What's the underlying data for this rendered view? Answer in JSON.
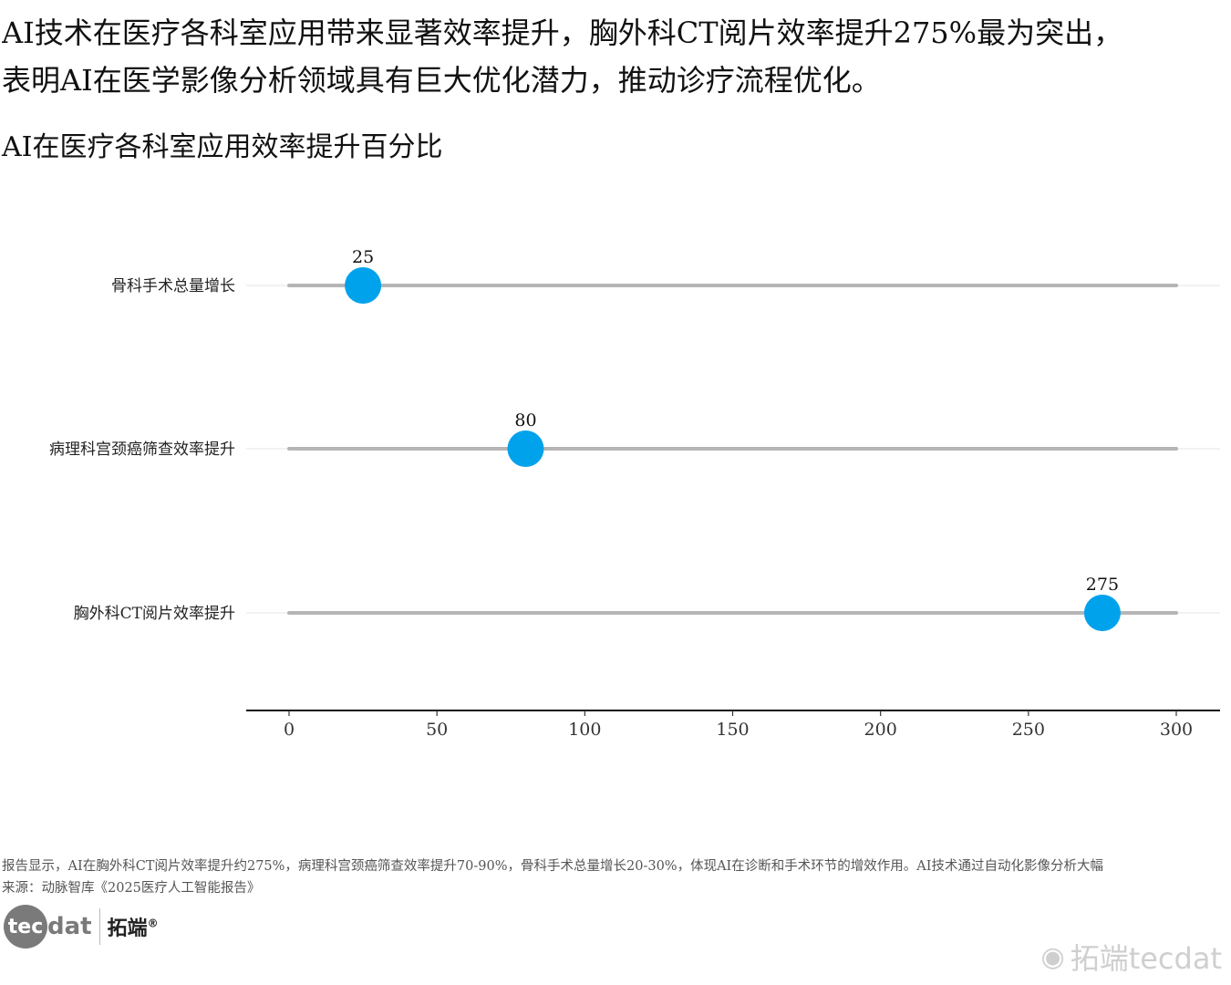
{
  "headline": {
    "line1": "AI技术在医疗各科室应用带来显著效率提升，胸外科CT阅片效率提升275%最为突出，",
    "line2": "表明AI在医学影像分析领域具有巨大优化潜力，推动诊疗流程优化。"
  },
  "subtitle": "AI在医疗各科室应用效率提升百分比",
  "chart_data": {
    "type": "lollipop",
    "categories": [
      "骨科手术总量增长",
      "病理科宫颈癌筛查效率提升",
      "胸外科CT阅片效率提升"
    ],
    "values": [
      25,
      80,
      275
    ],
    "value_labels": [
      "25",
      "80",
      "275"
    ],
    "track_max": 300,
    "xlim": [
      -15,
      315
    ],
    "x_ticks": [
      0,
      50,
      100,
      150,
      200,
      250,
      300
    ],
    "x_tick_labels": [
      "0",
      "50",
      "100",
      "150",
      "200",
      "250",
      "300"
    ],
    "colors": {
      "point": "#00a2ec",
      "track": "#b5b5b5",
      "grid": "#ebebeb",
      "axis": "#111111"
    }
  },
  "footnote": {
    "line1": "报告显示，AI在胸外科CT阅片效率提升约275%，病理科宫颈癌筛查效率提升70-90%，骨科手术总量增长20-30%，体现AI在诊断和手术环节的增效作用。AI技术通过自动化影像分析大幅",
    "line2": "来源：动脉智库《2025医疗人工智能报告》"
  },
  "logo": {
    "circle_text": "tec",
    "rest_text": "dat",
    "cn_text": "拓端",
    "reg_mark": "®"
  },
  "watermark": {
    "icon": "weibo-icon",
    "text": "拓端tecdat"
  }
}
